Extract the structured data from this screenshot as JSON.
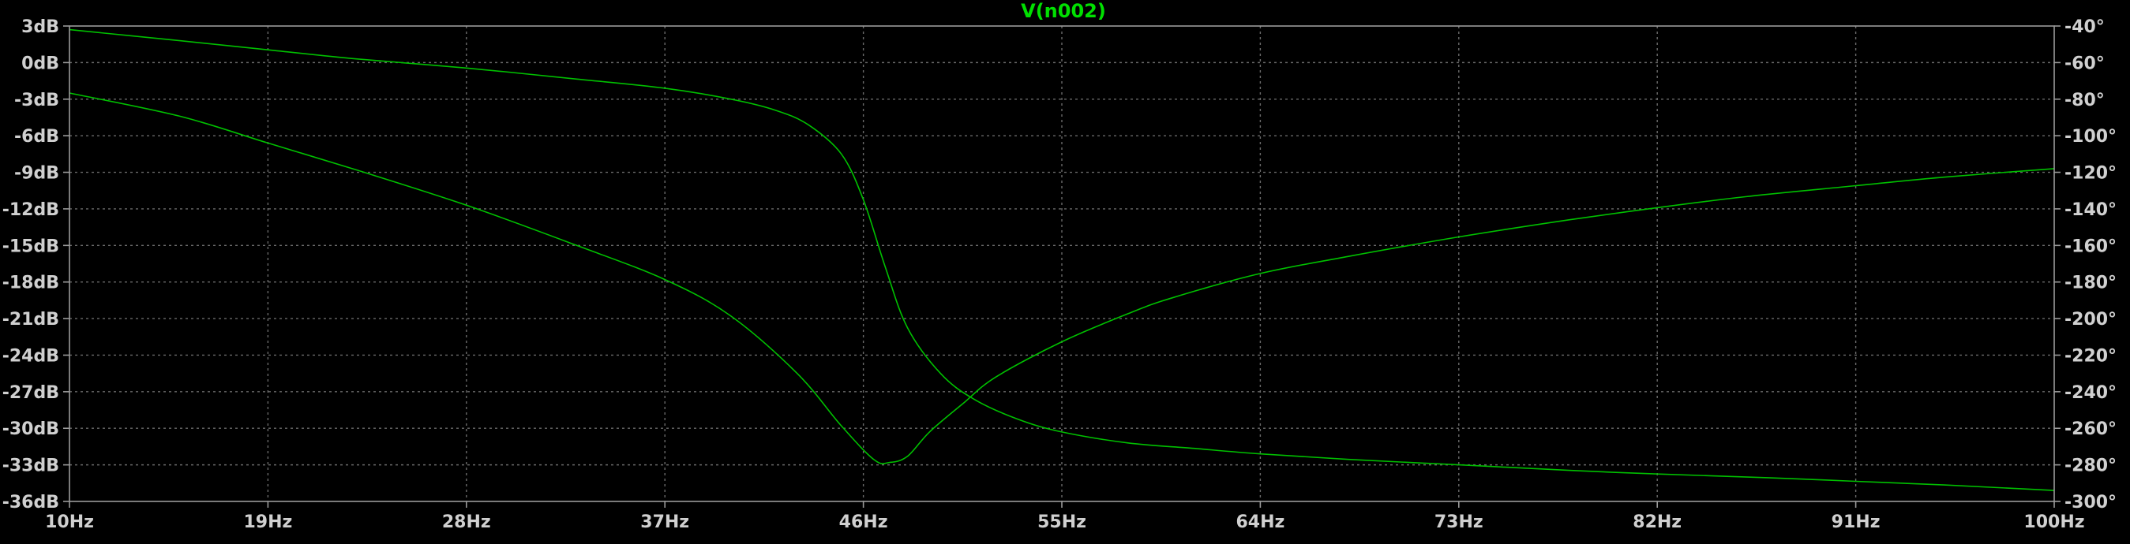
{
  "chart_data": {
    "type": "line",
    "title": "V(n002)",
    "x_scale": "linear",
    "xlim": [
      10,
      100
    ],
    "x_ticks": [
      {
        "value": 10,
        "label": "10Hz"
      },
      {
        "value": 19,
        "label": "19Hz"
      },
      {
        "value": 28,
        "label": "28Hz"
      },
      {
        "value": 37,
        "label": "37Hz"
      },
      {
        "value": 46,
        "label": "46Hz"
      },
      {
        "value": 55,
        "label": "55Hz"
      },
      {
        "value": 64,
        "label": "64Hz"
      },
      {
        "value": 73,
        "label": "73Hz"
      },
      {
        "value": 82,
        "label": "82Hz"
      },
      {
        "value": 91,
        "label": "91Hz"
      },
      {
        "value": 100,
        "label": "100Hz"
      }
    ],
    "y_left": {
      "lim": [
        -36,
        3
      ],
      "ticks": [
        {
          "value": 3,
          "label": "3dB"
        },
        {
          "value": 0,
          "label": "0dB"
        },
        {
          "value": -3,
          "label": "-3dB"
        },
        {
          "value": -6,
          "label": "-6dB"
        },
        {
          "value": -9,
          "label": "-9dB"
        },
        {
          "value": -12,
          "label": "-12dB"
        },
        {
          "value": -15,
          "label": "-15dB"
        },
        {
          "value": -18,
          "label": "-18dB"
        },
        {
          "value": -21,
          "label": "-21dB"
        },
        {
          "value": -24,
          "label": "-24dB"
        },
        {
          "value": -27,
          "label": "-27dB"
        },
        {
          "value": -30,
          "label": "-30dB"
        },
        {
          "value": -33,
          "label": "-33dB"
        },
        {
          "value": -36,
          "label": "-36dB"
        }
      ]
    },
    "y_right": {
      "lim": [
        -300,
        -40
      ],
      "ticks": [
        {
          "value": -40,
          "label": "-40°"
        },
        {
          "value": -60,
          "label": "-60°"
        },
        {
          "value": -80,
          "label": "-80°"
        },
        {
          "value": -100,
          "label": "-100°"
        },
        {
          "value": -120,
          "label": "-120°"
        },
        {
          "value": -140,
          "label": "-140°"
        },
        {
          "value": -160,
          "label": "-160°"
        },
        {
          "value": -180,
          "label": "-180°"
        },
        {
          "value": -200,
          "label": "-200°"
        },
        {
          "value": -220,
          "label": "-220°"
        },
        {
          "value": -240,
          "label": "-240°"
        },
        {
          "value": -260,
          "label": "-260°"
        },
        {
          "value": -280,
          "label": "-280°"
        },
        {
          "value": -300,
          "label": "-300°"
        }
      ]
    },
    "grid": true,
    "trace_color": "#00c000",
    "series": [
      {
        "axis": "left",
        "points": [
          [
            10,
            -2.5
          ],
          [
            15,
            -4.4
          ],
          [
            19,
            -6.6
          ],
          [
            23,
            -8.8
          ],
          [
            28,
            -11.7
          ],
          [
            33,
            -15.0
          ],
          [
            37,
            -17.8
          ],
          [
            40,
            -20.8
          ],
          [
            43,
            -25.5
          ],
          [
            45,
            -29.8
          ],
          [
            46.5,
            -32.6
          ],
          [
            47.2,
            -32.8
          ],
          [
            48,
            -32.3
          ],
          [
            49,
            -30.3
          ],
          [
            50.5,
            -28.0
          ],
          [
            52,
            -25.8
          ],
          [
            55,
            -22.9
          ],
          [
            58,
            -20.6
          ],
          [
            60,
            -19.3
          ],
          [
            64,
            -17.3
          ],
          [
            68,
            -15.9
          ],
          [
            73,
            -14.3
          ],
          [
            78,
            -12.9
          ],
          [
            82,
            -11.9
          ],
          [
            86,
            -11.0
          ],
          [
            91,
            -10.1
          ],
          [
            95,
            -9.4
          ],
          [
            100,
            -8.7
          ]
        ]
      },
      {
        "axis": "right",
        "points": [
          [
            10,
            -42
          ],
          [
            15,
            -48
          ],
          [
            19,
            -53
          ],
          [
            23,
            -58
          ],
          [
            28,
            -63
          ],
          [
            33,
            -69
          ],
          [
            37,
            -74
          ],
          [
            40,
            -80
          ],
          [
            42,
            -86
          ],
          [
            43.5,
            -94
          ],
          [
            45,
            -110
          ],
          [
            46,
            -135
          ],
          [
            47,
            -172
          ],
          [
            48,
            -205
          ],
          [
            49.5,
            -230
          ],
          [
            51,
            -244
          ],
          [
            53,
            -255
          ],
          [
            55,
            -262
          ],
          [
            58,
            -268
          ],
          [
            61,
            -271
          ],
          [
            64,
            -274
          ],
          [
            68,
            -277
          ],
          [
            73,
            -280
          ],
          [
            78,
            -283
          ],
          [
            82,
            -285
          ],
          [
            87,
            -287
          ],
          [
            91,
            -289
          ],
          [
            95,
            -291
          ],
          [
            100,
            -294
          ]
        ]
      }
    ]
  }
}
